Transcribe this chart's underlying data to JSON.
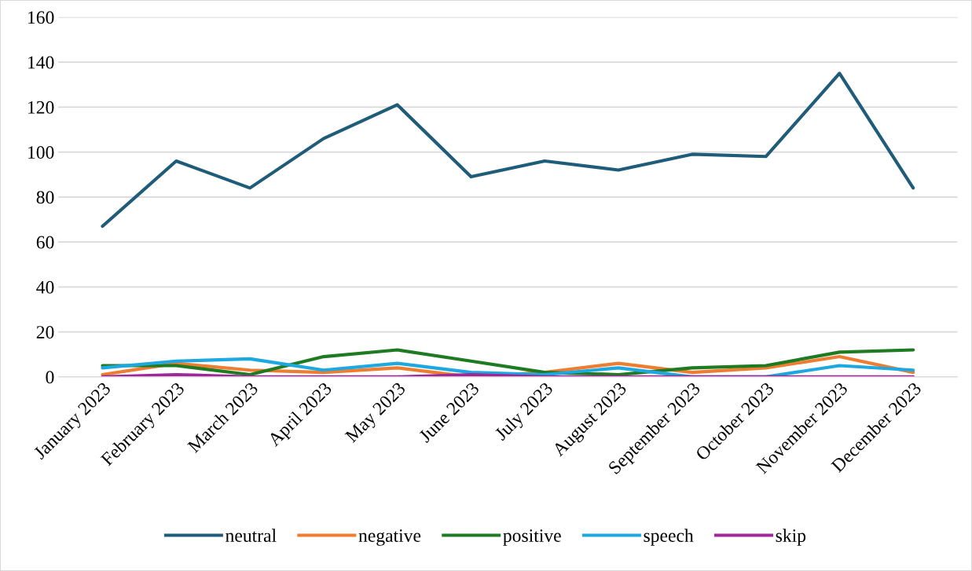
{
  "chart_data": {
    "type": "line",
    "categories": [
      "January 2023",
      "February 2023",
      "March 2023",
      "April 2023",
      "May 2023",
      "June 2023",
      "July 2023",
      "August 2023",
      "September 2023",
      "October 2023",
      "November 2023",
      "December 2023"
    ],
    "series": [
      {
        "name": "neutral",
        "color": "#1f5c7a",
        "values": [
          67,
          96,
          84,
          106,
          121,
          89,
          96,
          92,
          99,
          98,
          135,
          84
        ]
      },
      {
        "name": "negative",
        "color": "#ed7d31",
        "values": [
          1,
          6,
          3,
          2,
          4,
          0,
          2,
          6,
          2,
          4,
          9,
          2
        ]
      },
      {
        "name": "positive",
        "color": "#1e7b22",
        "values": [
          5,
          5,
          1,
          9,
          12,
          7,
          2,
          1,
          4,
          5,
          11,
          12
        ]
      },
      {
        "name": "speech",
        "color": "#1ea8e0",
        "values": [
          4,
          7,
          8,
          3,
          6,
          2,
          1,
          4,
          0,
          0,
          5,
          3
        ]
      },
      {
        "name": "skip",
        "color": "#a0279a",
        "values": [
          0,
          1,
          0,
          0,
          0,
          1,
          0,
          0,
          0,
          0,
          0,
          0
        ]
      }
    ],
    "ylim": [
      0,
      160
    ],
    "yticks": [
      0,
      20,
      40,
      60,
      80,
      100,
      120,
      140,
      160
    ],
    "grid": "y",
    "legend": "bottom",
    "marker": "none",
    "line_style": "solid"
  }
}
